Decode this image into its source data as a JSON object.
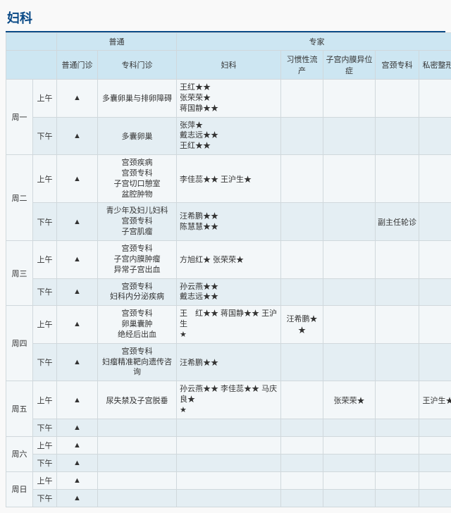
{
  "title": "妇科",
  "header_groups": {
    "corner": "",
    "general": "普通",
    "expert": "专家"
  },
  "header_cols": {
    "general_clinic": "普通门诊",
    "special_clinic": "专科门诊",
    "gynecology": "妇科",
    "habitual": "习惯性流产",
    "endometriosis": "子宫内膜异位症",
    "cervix": "宫颈专科",
    "private": "私密整形"
  },
  "days": {
    "mon": "周一",
    "tue": "周二",
    "wed": "周三",
    "thu": "周四",
    "fri": "周五",
    "sat": "周六",
    "sun": "周日"
  },
  "slots": {
    "am": "上午",
    "pm": "下午"
  },
  "mark": "▲",
  "cells": {
    "mon_am_zk": "多囊卵巢与排卵障碍",
    "mon_am_fk_1": "王红★★",
    "mon_am_fk_2": "张荣荣★",
    "mon_am_fk_3": "蒋国静★★",
    "mon_pm_zk": "多囊卵巢",
    "mon_pm_fk_1": "张萍★",
    "mon_pm_fk_2": "戴志远★★",
    "mon_pm_fk_3": "王红★★",
    "tue_am_zk_1": "宫颈疾病",
    "tue_am_zk_2": "宫颈专科",
    "tue_am_zk_3": "子宫切口憩室",
    "tue_am_zk_4": "盆腔肿物",
    "tue_am_fk": "李佳蕊★★  王沪生★",
    "tue_pm_zk_1": "青少年及妇儿妇科",
    "tue_pm_zk_2": "宫颈专科",
    "tue_pm_zk_3": "子宫肌瘤",
    "tue_pm_fk_1": "汪希鹏★★",
    "tue_pm_fk_2": "陈慧慧★★",
    "tue_pm_gj": "副主任轮诊",
    "wed_am_zk_1": "宫颈专科",
    "wed_am_zk_2": "子宫内膜肿瘤",
    "wed_am_zk_3": "异常子宫出血",
    "wed_am_fk": "方旭红★  张荣荣★",
    "wed_pm_zk_1": "宫颈专科",
    "wed_pm_zk_2": "妇科内分泌疾病",
    "wed_pm_fk_1": "孙云燕★★",
    "wed_pm_fk_2": "戴志远★★",
    "thu_am_zk_1": "宫颈专科",
    "thu_am_zk_2": "卵巢囊肿",
    "thu_am_zk_3": "绝经后出血",
    "thu_am_fk_1": "王　红★★  蒋国静★★  王沪生",
    "thu_am_fk_2": "★",
    "thu_am_xg": "汪希鹏★★",
    "thu_pm_zk_1": "宫颈专科",
    "thu_pm_zk_2": "妇瘤精准靶向遗传咨询",
    "thu_pm_fk": "汪希鹏★★",
    "fri_am_zk": "尿失禁及子宫脱垂",
    "fri_am_fk_1": "孙云燕★★  李佳蕊★★  马庆良★",
    "fri_am_fk_2": "★",
    "fri_am_zg": "张荣荣★",
    "fri_am_sm": "王沪生★"
  }
}
